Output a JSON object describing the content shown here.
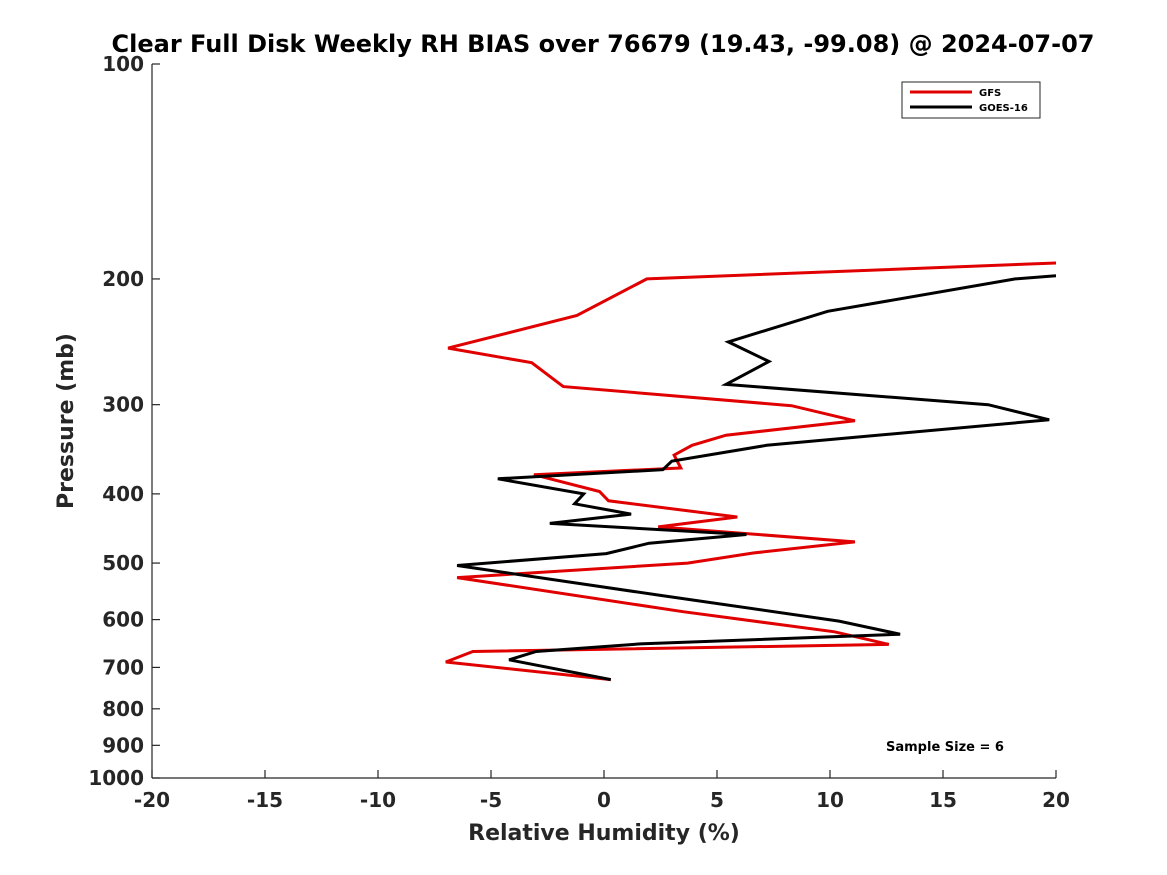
{
  "chart_data": {
    "type": "line",
    "title": "Clear Full Disk Weekly RH BIAS over 76679 (19.43, -99.08) @ 2024-07-07",
    "xlabel": "Relative Humidity (%)",
    "ylabel": "Pressure (mb)",
    "xlim": [
      -20,
      20
    ],
    "ylim": [
      100,
      1000
    ],
    "y_scale": "log",
    "y_reversed": true,
    "x_ticks": [
      "-20",
      "-15",
      "-10",
      "-5",
      "0",
      "5",
      "10",
      "15",
      "20"
    ],
    "y_ticks": [
      "100",
      "200",
      "300",
      "400",
      "500",
      "600",
      "700",
      "800",
      "900",
      "1000"
    ],
    "legend_position": "top-right",
    "annotation": "Sample Size = 6",
    "series": [
      {
        "name": "GFS",
        "color": "#e00000",
        "points": [
          [
            20.0,
            190
          ],
          [
            1.9,
            200
          ],
          [
            -1.2,
            225
          ],
          [
            -6.9,
            250
          ],
          [
            -3.2,
            262
          ],
          [
            -1.8,
            283
          ],
          [
            8.3,
            301
          ],
          [
            11.1,
            316
          ],
          [
            5.4,
            331
          ],
          [
            3.9,
            342
          ],
          [
            3.1,
            353
          ],
          [
            3.4,
            368
          ],
          [
            -3.1,
            376
          ],
          [
            -0.2,
            397
          ],
          [
            0.2,
            409
          ],
          [
            5.9,
            431
          ],
          [
            2.4,
            445
          ],
          [
            11.1,
            467
          ],
          [
            6.6,
            484
          ],
          [
            3.7,
            500
          ],
          [
            -6.5,
            524
          ],
          [
            3.5,
            585
          ],
          [
            10.2,
            624
          ],
          [
            12.6,
            650
          ],
          [
            -5.8,
            665
          ],
          [
            -7.0,
            688
          ],
          [
            0.3,
            728
          ]
        ]
      },
      {
        "name": "GOES-16",
        "color": "#000000",
        "points": [
          [
            20.0,
            198
          ],
          [
            18.2,
            200
          ],
          [
            9.9,
            222
          ],
          [
            5.5,
            245
          ],
          [
            7.3,
            261
          ],
          [
            5.4,
            281
          ],
          [
            17.0,
            300
          ],
          [
            19.7,
            315
          ],
          [
            7.2,
            342
          ],
          [
            3.0,
            360
          ],
          [
            2.6,
            370
          ],
          [
            -4.7,
            381
          ],
          [
            -0.9,
            400
          ],
          [
            -1.3,
            413
          ],
          [
            1.2,
            427
          ],
          [
            -2.4,
            440
          ],
          [
            6.3,
            456
          ],
          [
            2.0,
            469
          ],
          [
            0.1,
            485
          ],
          [
            -6.5,
            504
          ],
          [
            2.5,
            555
          ],
          [
            10.4,
            603
          ],
          [
            13.1,
            629
          ],
          [
            1.6,
            649
          ],
          [
            -3.0,
            665
          ],
          [
            -4.2,
            683
          ],
          [
            0.3,
            728
          ]
        ]
      }
    ]
  }
}
